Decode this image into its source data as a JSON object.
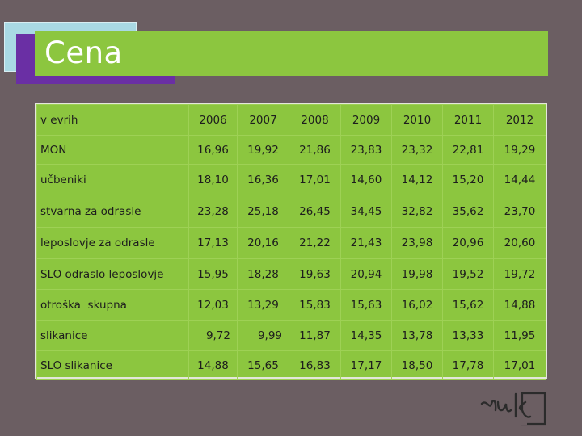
{
  "title": "Cena",
  "table": {
    "header_label": "v evrih",
    "years": [
      "2006",
      "2007",
      "2008",
      "2009",
      "2010",
      "2011",
      "2012"
    ],
    "rows": [
      {
        "label": "MON",
        "values": [
          "16,96",
          "19,92",
          "21,86",
          "23,83",
          "23,32",
          "22,81",
          "19,29"
        ]
      },
      {
        "label": "učbeniki",
        "values": [
          "18,10",
          "16,36",
          "17,01",
          "14,60",
          "14,12",
          "15,20",
          "14,44"
        ]
      },
      {
        "label": "stvarna za odrasle",
        "values": [
          "23,28",
          "25,18",
          "26,45",
          "34,45",
          "32,82",
          "35,62",
          "23,70"
        ]
      },
      {
        "label": "leposlovje za odrasle",
        "values": [
          "17,13",
          "20,16",
          "21,22",
          "21,43",
          "23,98",
          "20,96",
          "20,60"
        ]
      },
      {
        "label": "SLO odraslo leposlovje",
        "values": [
          "15,95",
          "18,28",
          "19,63",
          "20,94",
          "19,98",
          "19,52",
          "19,72"
        ]
      },
      {
        "label": "otroška  skupna",
        "values": [
          "12,03",
          "13,29",
          "15,83",
          "15,63",
          "16,02",
          "15,62",
          "14,88"
        ]
      },
      {
        "label": "slikanice",
        "values": [
          "9,72",
          "9,99",
          "11,87",
          "14,35",
          "13,78",
          "13,33",
          "11,95"
        ]
      },
      {
        "label": "SLO slikanice",
        "values": [
          "14,88",
          "15,65",
          "16,83",
          "17,17",
          "18,50",
          "17,78",
          "17,01"
        ]
      }
    ]
  },
  "logo": {
    "text": "nuk"
  },
  "colors": {
    "background": "#6b5e62",
    "title_bar": "#8cc63f",
    "accent_purple": "#6a2fa4",
    "accent_blue": "#a9d9e4",
    "table_bg": "#8cc63f"
  }
}
